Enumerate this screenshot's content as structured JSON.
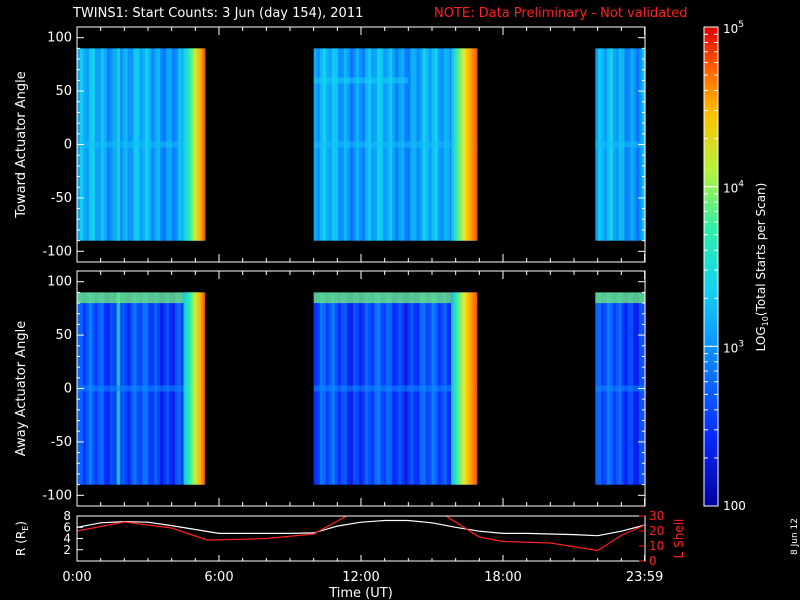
{
  "title": "TWINS1: Start Counts:  3 Jun (day 154), 2011",
  "note": "NOTE: Data Preliminary - Not validated",
  "date_stamp": "8 Jun 12",
  "colors": {
    "background": "#000000",
    "axes": "#ffffff",
    "note": "#ff2020",
    "l_shell": "#ff2020",
    "r_earth": "#ffffff"
  },
  "chart_data": [
    {
      "type": "heatmap",
      "ylabel": "Toward Actuator Angle",
      "ylim": [
        -110,
        110
      ],
      "yticks": [
        "100",
        "50",
        "0",
        "-50",
        "-100"
      ],
      "ytick_values": [
        100,
        50,
        0,
        -50,
        -100
      ],
      "data_y_range": [
        -90,
        90
      ],
      "data_intervals_hours": [
        [
          0.0,
          5.4
        ],
        [
          10.0,
          16.9
        ],
        [
          21.9,
          24.0
        ]
      ],
      "features": [
        {
          "kind": "vertical_stripe",
          "hour": 1.75,
          "level": 3.1
        },
        {
          "kind": "horizontal_band",
          "angle": 60,
          "hours": [
            10.0,
            14.0
          ],
          "level": 3.3
        },
        {
          "kind": "horizontal_band",
          "angle": 0,
          "level": 3.2
        },
        {
          "kind": "edge_ramp",
          "hours": [
            4.5,
            5.4
          ],
          "level_from": 3.4,
          "level_to": 4.9
        },
        {
          "kind": "edge_ramp",
          "hours": [
            15.8,
            16.9
          ],
          "level_from": 3.4,
          "level_to": 4.9
        }
      ]
    },
    {
      "type": "heatmap",
      "ylabel": "Away Actuator Angle",
      "ylim": [
        -110,
        110
      ],
      "yticks": [
        "100",
        "50",
        "0",
        "-50",
        "-100"
      ],
      "ytick_values": [
        100,
        50,
        0,
        -50,
        -100
      ],
      "data_y_range": [
        -90,
        90
      ],
      "data_intervals_hours": [
        [
          0.0,
          5.4
        ],
        [
          10.0,
          16.9
        ],
        [
          21.9,
          24.0
        ]
      ],
      "features": [
        {
          "kind": "vertical_stripe",
          "hour": 1.75,
          "level": 3.1
        },
        {
          "kind": "top_band",
          "angle_from": 80,
          "angle_to": 90,
          "level": 3.9
        },
        {
          "kind": "horizontal_band",
          "angle": 0,
          "level": 2.9
        },
        {
          "kind": "edge_ramp",
          "hours": [
            4.5,
            5.4
          ],
          "level_from": 3.4,
          "level_to": 4.9
        },
        {
          "kind": "edge_ramp",
          "hours": [
            15.8,
            16.9
          ],
          "level_from": 3.4,
          "level_to": 4.9
        }
      ]
    },
    {
      "type": "line",
      "xlabel": "Time (UT)",
      "xticks": [
        "0:00",
        "6:00",
        "12:00",
        "18:00",
        "23:59"
      ],
      "xtick_values": [
        0,
        6,
        12,
        18,
        23.983
      ],
      "xlim": [
        0,
        24
      ],
      "y_left": {
        "label": "R (R",
        "label_sub": "E",
        "label_end": ")",
        "ticks": [
          "8",
          "6",
          "4",
          "2"
        ],
        "tick_values": [
          8,
          6,
          4,
          2
        ],
        "lim": [
          0,
          8
        ]
      },
      "y_right": {
        "label": "L Shell",
        "ticks": [
          "30",
          "20",
          "10",
          "0"
        ],
        "tick_values": [
          30,
          20,
          10,
          0
        ],
        "lim": [
          0,
          30
        ]
      },
      "series": [
        {
          "axis": "left",
          "x": [
            0,
            1,
            2,
            3,
            4,
            5,
            6,
            7,
            8,
            9,
            10,
            11,
            12,
            13,
            14,
            15,
            16,
            17,
            18,
            19,
            20,
            21,
            22,
            23,
            24
          ],
          "y": [
            6.0,
            6.8,
            7.0,
            6.9,
            6.3,
            5.6,
            4.9,
            4.9,
            4.9,
            4.9,
            5.0,
            6.2,
            6.9,
            7.2,
            7.2,
            6.8,
            6.0,
            5.3,
            4.9,
            4.9,
            4.8,
            4.7,
            4.5,
            5.3,
            6.4
          ]
        },
        {
          "axis": "right",
          "x": [
            0,
            2,
            4,
            5.5,
            7,
            8,
            10,
            11.5,
            15.5,
            17,
            18,
            20,
            22,
            23,
            24
          ],
          "y": [
            20,
            26,
            22,
            14,
            14.5,
            15,
            18,
            31,
            31,
            16,
            13,
            12,
            7,
            17,
            24
          ]
        }
      ]
    }
  ],
  "colorbar": {
    "label_pre": "LOG",
    "label_sub": "10",
    "label_post": "(Total Starts per Scan)",
    "range_log10": [
      2,
      5
    ],
    "ticks": [
      {
        "text": "10",
        "sup": "5",
        "value": 5
      },
      {
        "text": "10",
        "sup": "4",
        "value": 4
      },
      {
        "text": "10",
        "sup": "3",
        "value": 3
      },
      {
        "text": "100",
        "sup": "",
        "value": 2
      }
    ]
  }
}
